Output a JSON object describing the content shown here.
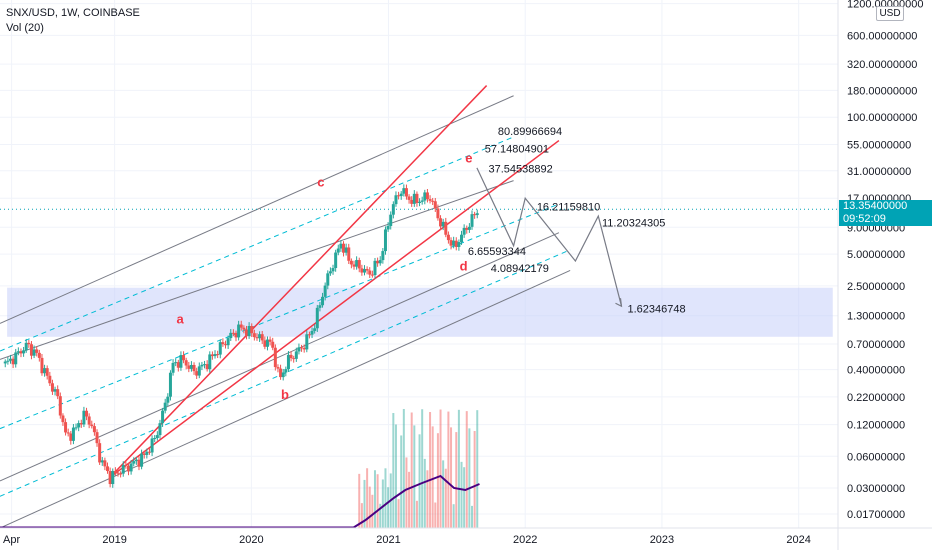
{
  "header": {
    "symbol_line": "SNX/USD, 1W, COINBASE",
    "volume_line": "Vol (20)"
  },
  "price_axis": {
    "currency_badge": "USD",
    "current_price": "13.35400000",
    "countdown": "09:52:09"
  },
  "chart_data": {
    "type": "candlestick",
    "y_scale": "log",
    "ylim": [
      0.0125,
      1300
    ],
    "xlim": [
      "2018-03-01",
      "2024-04-15"
    ],
    "y_ticks": [
      "1200.00000000",
      "600.00000000",
      "320.00000000",
      "180.00000000",
      "100.00000000",
      "55.00000000",
      "31.00000000",
      "17.00000000",
      "9.00000000",
      "5.00000000",
      "2.50000000",
      "1.30000000",
      "0.70000000",
      "0.40000000",
      "0.22000000",
      "0.12000000",
      "0.06000000",
      "0.03000000",
      "0.01700000"
    ],
    "y_tick_values": [
      1200,
      600,
      320,
      180,
      100,
      55,
      31,
      17,
      9,
      5,
      2.5,
      1.3,
      0.7,
      0.4,
      0.22,
      0.12,
      0.06,
      0.03,
      0.017
    ],
    "x_ticks": [
      {
        "label": "Apr",
        "date": "2018-04-01"
      },
      {
        "label": "2019",
        "date": "2019-01-01"
      },
      {
        "label": "2020",
        "date": "2020-01-01"
      },
      {
        "label": "2021",
        "date": "2021-01-01"
      },
      {
        "label": "2022",
        "date": "2022-01-01"
      },
      {
        "label": "2023",
        "date": "2023-01-01"
      },
      {
        "label": "2024",
        "date": "2024-01-01"
      }
    ],
    "price_path": [
      [
        "2018-03-15",
        0.45
      ],
      [
        "2018-04-15",
        0.55
      ],
      [
        "2018-05-10",
        0.68
      ],
      [
        "2018-06-05",
        0.58
      ],
      [
        "2018-07-01",
        0.36
      ],
      [
        "2018-08-01",
        0.22
      ],
      [
        "2018-08-25",
        0.09
      ],
      [
        "2018-09-20",
        0.11
      ],
      [
        "2018-10-10",
        0.15
      ],
      [
        "2018-11-01",
        0.12
      ],
      [
        "2018-11-25",
        0.055
      ],
      [
        "2018-12-20",
        0.038
      ],
      [
        "2019-01-20",
        0.045
      ],
      [
        "2019-02-15",
        0.05
      ],
      [
        "2019-03-20",
        0.06
      ],
      [
        "2019-04-20",
        0.09
      ],
      [
        "2019-05-15",
        0.18
      ],
      [
        "2019-06-05",
        0.45
      ],
      [
        "2019-07-01",
        0.5
      ],
      [
        "2019-08-01",
        0.38
      ],
      [
        "2019-09-01",
        0.45
      ],
      [
        "2019-10-01",
        0.6
      ],
      [
        "2019-11-01",
        0.8
      ],
      [
        "2019-12-01",
        1.0
      ],
      [
        "2020-01-01",
        0.9
      ],
      [
        "2020-02-01",
        0.75
      ],
      [
        "2020-02-25",
        0.7
      ],
      [
        "2020-03-15",
        0.32
      ],
      [
        "2020-04-10",
        0.5
      ],
      [
        "2020-05-15",
        0.65
      ],
      [
        "2020-06-15",
        1.0
      ],
      [
        "2020-07-15",
        2.5
      ],
      [
        "2020-08-10",
        4.5
      ],
      [
        "2020-08-28",
        6.5
      ],
      [
        "2020-09-20",
        4.2
      ],
      [
        "2020-10-15",
        3.8
      ],
      [
        "2020-11-10",
        3.2
      ],
      [
        "2020-12-10",
        4.5
      ],
      [
        "2021-01-10",
        14
      ],
      [
        "2021-02-05",
        21
      ],
      [
        "2021-02-20",
        17
      ],
      [
        "2021-03-20",
        16
      ],
      [
        "2021-04-20",
        18
      ],
      [
        "2021-05-10",
        12
      ],
      [
        "2021-06-10",
        7
      ],
      [
        "2021-06-25",
        5.8
      ],
      [
        "2021-07-20",
        8
      ],
      [
        "2021-08-20",
        12
      ],
      [
        "2021-09-01",
        13.354
      ]
    ],
    "volume_path": [
      [
        "2018-03-01",
        0.5
      ],
      [
        "2020-09-30",
        0.5
      ],
      [
        "2020-11-01",
        8
      ],
      [
        "2021-01-15",
        30
      ],
      [
        "2021-02-15",
        38
      ],
      [
        "2021-04-01",
        45
      ],
      [
        "2021-05-20",
        52
      ],
      [
        "2021-06-25",
        40
      ],
      [
        "2021-07-25",
        38
      ],
      [
        "2021-09-01",
        44
      ]
    ],
    "channels": {
      "gray_solid": [
        [
          [
            "2018-03-01",
            1.1
          ],
          [
            "2021-12-01",
            160
          ]
        ],
        [
          [
            "2018-03-01",
            0.5
          ],
          [
            "2021-12-01",
            25
          ]
        ],
        [
          [
            "2018-03-01",
            0.035
          ],
          [
            "2022-04-01",
            8
          ]
        ],
        [
          [
            "2018-03-01",
            0.0125
          ],
          [
            "2022-05-01",
            3.5
          ]
        ]
      ],
      "cyan_dashed": [
        [
          [
            "2018-03-01",
            0.6
          ],
          [
            "2021-12-01",
            65
          ]
        ],
        [
          [
            "2018-03-01",
            0.11
          ],
          [
            "2022-04-01",
            15
          ]
        ],
        [
          [
            "2018-03-01",
            0.025
          ],
          [
            "2022-05-01",
            5.5
          ]
        ]
      ],
      "red_solid": [
        [
          [
            "2018-12-20",
            0.038
          ],
          [
            "2021-09-20",
            200
          ]
        ],
        [
          [
            "2018-12-20",
            0.038
          ],
          [
            "2022-04-01",
            60
          ]
        ]
      ]
    },
    "projection_path": [
      [
        "2021-08-25",
        33
      ],
      [
        "2021-12-01",
        6
      ],
      [
        "2022-01-01",
        17
      ],
      [
        "2022-05-15",
        4.3
      ],
      [
        "2022-07-15",
        11.5
      ],
      [
        "2022-09-15",
        1.6
      ]
    ],
    "support_zone": {
      "low": 0.82,
      "high": 2.4,
      "x_start": "2018-03-20",
      "x_end": "2024-04-01"
    },
    "annotations": [
      {
        "text": "80.89966694",
        "x": "2021-10-20",
        "y": 68
      },
      {
        "text": "57.14804901",
        "x": "2021-09-15",
        "y": 46
      },
      {
        "text": "37.54538892",
        "x": "2021-09-25",
        "y": 30
      },
      {
        "text": "16.21159810",
        "x": "2022-02-01",
        "y": 13
      },
      {
        "text": "11.20324305",
        "x": "2022-07-25",
        "y": 9.2
      },
      {
        "text": "6.65593344",
        "x": "2021-08-01",
        "y": 4.9
      },
      {
        "text": "4.08942179",
        "x": "2021-10-01",
        "y": 3.4
      },
      {
        "text": "1.62346748",
        "x": "2022-10-01",
        "y": 1.4
      }
    ],
    "wave_labels": [
      {
        "text": "a",
        "x": "2019-06-15",
        "y": 1.1
      },
      {
        "text": "b",
        "x": "2020-03-20",
        "y": 0.21
      },
      {
        "text": "c",
        "x": "2020-06-25",
        "y": 22
      },
      {
        "text": "d",
        "x": "2021-07-10",
        "y": 3.5
      },
      {
        "text": "e",
        "x": "2021-07-25",
        "y": 37
      }
    ],
    "colors": {
      "up": "#26a69a",
      "down": "#ef5350",
      "channel_gray": "#787b86",
      "channel_cyan": "#00bcd4",
      "channel_red": "#f23645",
      "zone": "#c7d0f9",
      "volume_ma": "#4b0082",
      "price_line": "#00a3b5",
      "grid": "#f0f3fa"
    }
  }
}
